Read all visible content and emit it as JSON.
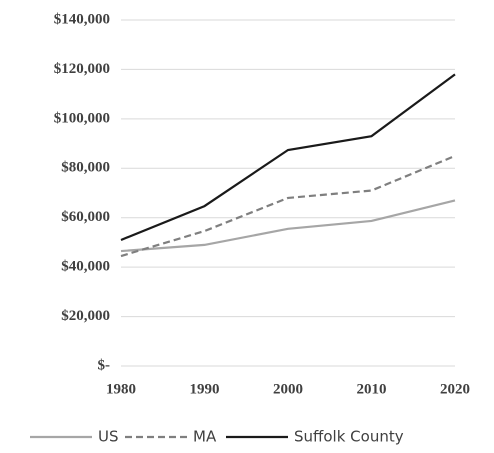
{
  "chart_data": {
    "type": "line",
    "x": [
      1980,
      1990,
      2000,
      2010,
      2020
    ],
    "xlim": [
      1980,
      2020
    ],
    "xticks": [
      1980,
      1990,
      2000,
      2010,
      2020
    ],
    "ylim": [
      0,
      140000
    ],
    "yticks": [
      {
        "value": 0,
        "label": "$-"
      },
      {
        "value": 20000,
        "label": "$20,000"
      },
      {
        "value": 40000,
        "label": "$40,000"
      },
      {
        "value": 60000,
        "label": "$60,000"
      },
      {
        "value": 80000,
        "label": "$80,000"
      },
      {
        "value": 100000,
        "label": "$100,000"
      },
      {
        "value": 120000,
        "label": "$120,000"
      },
      {
        "value": 140000,
        "label": "$140,000"
      }
    ],
    "grid": true,
    "legend": "bottom",
    "series": [
      {
        "name": "US",
        "color": "#a6a6a6",
        "line_style": "solid",
        "values": [
          46500,
          49000,
          55500,
          58700,
          67000
        ]
      },
      {
        "name": "MA",
        "color": "#7f7f7f",
        "line_style": "dashed",
        "values": [
          44500,
          54600,
          68000,
          71000,
          85000
        ]
      },
      {
        "name": "Suffolk County",
        "color": "#1a1a1a",
        "line_style": "solid",
        "values": [
          51000,
          64700,
          87400,
          93000,
          118000
        ]
      }
    ]
  }
}
